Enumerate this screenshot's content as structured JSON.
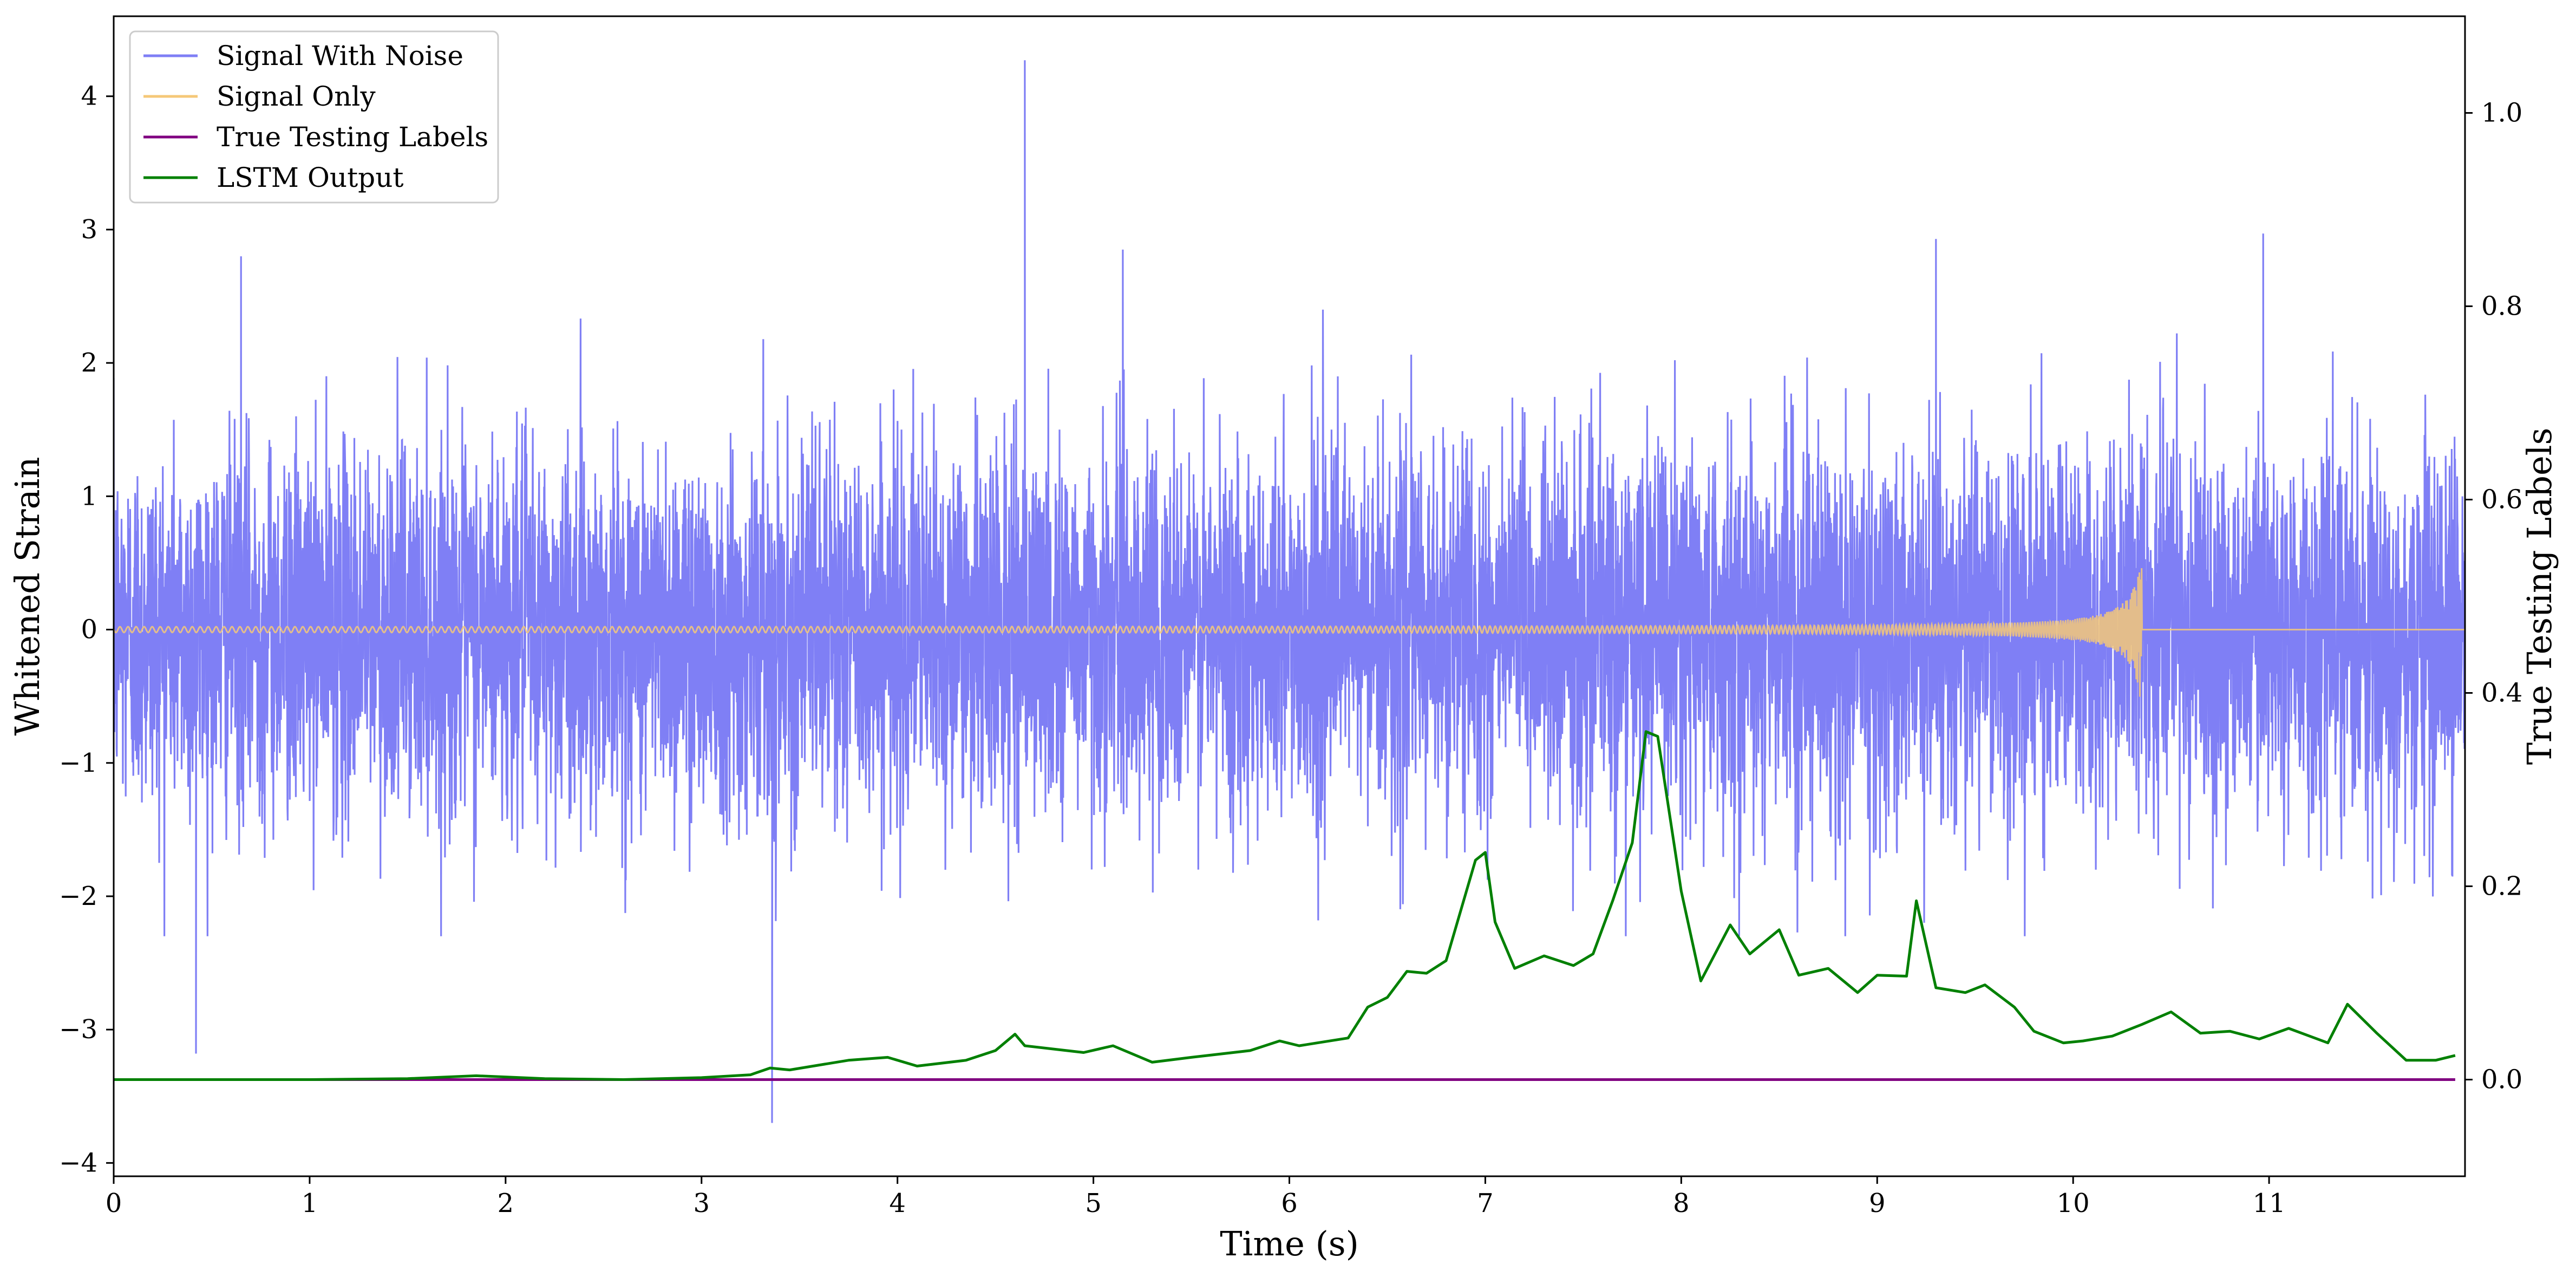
{
  "chart_data": {
    "type": "line",
    "xlabel": "Time (s)",
    "ylabel_left": "Whitened Strain",
    "ylabel_right": "True Testing Labels",
    "xlim": [
      0,
      12
    ],
    "ylim_left": [
      -4.1,
      4.6
    ],
    "ylim_right": [
      -0.1,
      1.1
    ],
    "x_ticks": [
      0,
      1,
      2,
      3,
      4,
      5,
      6,
      7,
      8,
      9,
      10,
      11
    ],
    "y_left_ticks": [
      -4,
      -3,
      -2,
      -1,
      0,
      1,
      2,
      3,
      4
    ],
    "y_right_ticks": [
      0.0,
      0.2,
      0.4,
      0.6,
      0.8,
      1.0
    ],
    "legend_position": "top-left",
    "grid": false,
    "series": [
      {
        "name": "Signal With Noise",
        "axis": "left",
        "color": "#7f7ff5",
        "style": "dense noise, roughly Gaussian around 0, typical range about -2 to 2.8",
        "x_range": [
          0,
          12
        ],
        "notable_peaks": [
          {
            "x": 4.65,
            "y": 4.27
          },
          {
            "x": 3.36,
            "y": -3.7
          },
          {
            "x": 0.42,
            "y": -3.18
          },
          {
            "x": 10.97,
            "y": 2.97
          },
          {
            "x": 9.3,
            "y": 2.93
          },
          {
            "x": 5.15,
            "y": 2.85
          },
          {
            "x": 0.65,
            "y": 2.8
          }
        ]
      },
      {
        "name": "Signal Only",
        "axis": "left",
        "color": "#f5c878",
        "style": "chirp waveform, amplitude ~0.02 early, growing to ~0.65 at merger",
        "x_range": [
          0,
          12
        ],
        "merger_time": 10.35,
        "peak_amplitude": 0.65
      },
      {
        "name": "True Testing Labels",
        "axis": "right",
        "color": "#800080",
        "x": [
          0,
          11.95
        ],
        "y": [
          0.0,
          0.0
        ]
      },
      {
        "name": "LSTM Output",
        "axis": "right",
        "color": "#008000",
        "x": [
          0,
          0.5,
          1.0,
          1.5,
          1.85,
          2.2,
          2.6,
          3.0,
          3.25,
          3.35,
          3.45,
          3.75,
          3.95,
          4.1,
          4.35,
          4.5,
          4.6,
          4.65,
          4.95,
          5.1,
          5.3,
          5.5,
          5.8,
          5.95,
          6.05,
          6.3,
          6.4,
          6.5,
          6.6,
          6.7,
          6.8,
          6.95,
          7.0,
          7.05,
          7.15,
          7.3,
          7.45,
          7.55,
          7.65,
          7.75,
          7.82,
          7.88,
          8.0,
          8.1,
          8.25,
          8.35,
          8.5,
          8.6,
          8.75,
          8.9,
          9.0,
          9.15,
          9.2,
          9.3,
          9.45,
          9.55,
          9.7,
          9.8,
          9.95,
          10.05,
          10.2,
          10.35,
          10.5,
          10.65,
          10.8,
          10.95,
          11.1,
          11.3,
          11.4,
          11.55,
          11.7,
          11.85,
          11.95
        ],
        "y": [
          0.0,
          0.0,
          0.0,
          0.001,
          0.004,
          0.001,
          0.0,
          0.002,
          0.005,
          0.012,
          0.01,
          0.02,
          0.023,
          0.014,
          0.02,
          0.03,
          0.047,
          0.035,
          0.028,
          0.035,
          0.018,
          0.023,
          0.03,
          0.04,
          0.035,
          0.043,
          0.075,
          0.085,
          0.112,
          0.11,
          0.123,
          0.227,
          0.235,
          0.163,
          0.115,
          0.128,
          0.118,
          0.13,
          0.185,
          0.245,
          0.36,
          0.355,
          0.195,
          0.102,
          0.16,
          0.13,
          0.155,
          0.108,
          0.115,
          0.09,
          0.108,
          0.107,
          0.185,
          0.095,
          0.09,
          0.098,
          0.075,
          0.05,
          0.038,
          0.04,
          0.045,
          0.057,
          0.07,
          0.048,
          0.05,
          0.042,
          0.053,
          0.038,
          0.078,
          0.048,
          0.02,
          0.02,
          0.025
        ]
      }
    ]
  }
}
